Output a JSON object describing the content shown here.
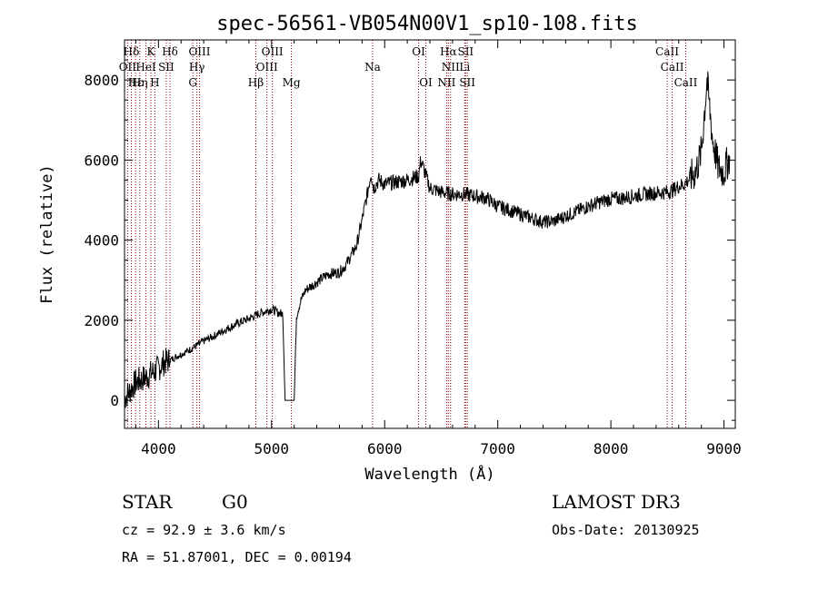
{
  "chart_data": {
    "type": "line",
    "title": "spec-56561-VB054N00V1_sp10-108.fits",
    "xlabel": "Wavelength (Å)",
    "ylabel": "Flux (relative)",
    "xlim": [
      3700,
      9100
    ],
    "ylim": [
      -700,
      9000
    ],
    "x_ticks": [
      4000,
      5000,
      6000,
      7000,
      8000,
      9000
    ],
    "y_ticks": [
      0,
      2000,
      4000,
      6000,
      8000
    ],
    "x_tick_labels": [
      "4000",
      "5000",
      "6000",
      "7000",
      "8000",
      "9000"
    ],
    "y_tick_labels": [
      "0",
      "2000",
      "4000",
      "6000",
      "8000"
    ],
    "series": [
      {
        "name": "flux",
        "x": [
          3700,
          3750,
          3800,
          3850,
          3900,
          3950,
          4000,
          4050,
          4100,
          4150,
          4200,
          4300,
          4400,
          4500,
          4600,
          4700,
          4800,
          4900,
          5000,
          5050,
          5100,
          5110,
          5120,
          5140,
          5160,
          5180,
          5200,
          5220,
          5240,
          5260,
          5300,
          5400,
          5500,
          5600,
          5650,
          5700,
          5750,
          5800,
          5850,
          5880,
          5900,
          5950,
          6000,
          6100,
          6200,
          6300,
          6320,
          6400,
          6500,
          6600,
          6700,
          6800,
          6900,
          7000,
          7100,
          7200,
          7300,
          7400,
          7500,
          7600,
          7700,
          7800,
          7900,
          8000,
          8100,
          8200,
          8300,
          8400,
          8500,
          8550,
          8600,
          8650,
          8700,
          8750,
          8800,
          8850,
          8900,
          8950,
          9000,
          9050
        ],
        "y": [
          50,
          250,
          450,
          520,
          600,
          700,
          800,
          950,
          1000,
          1080,
          1150,
          1300,
          1480,
          1620,
          1780,
          1920,
          2040,
          2180,
          2280,
          2200,
          2150,
          1000,
          0,
          0,
          0,
          0,
          0,
          2100,
          2300,
          2500,
          2750,
          2950,
          3150,
          3200,
          3350,
          3600,
          3850,
          4500,
          5200,
          5700,
          5300,
          5500,
          5400,
          5450,
          5500,
          5600,
          6000,
          5300,
          5200,
          5150,
          5150,
          5100,
          5050,
          4850,
          4750,
          4650,
          4550,
          4450,
          4480,
          4600,
          4720,
          4850,
          4950,
          5030,
          5050,
          5100,
          5150,
          5180,
          5200,
          5250,
          5350,
          5400,
          5550,
          5700,
          6200,
          8000,
          6500,
          5800,
          5700,
          6100
        ]
      }
    ],
    "line_markers": [
      {
        "label": "Hδ",
        "x": 3760,
        "row": 0
      },
      {
        "label": "K",
        "x": 3933,
        "row": 0
      },
      {
        "label": "Hδ",
        "x": 4102,
        "row": 0
      },
      {
        "label": "OIII",
        "x": 4363,
        "row": 0
      },
      {
        "label": "OIII",
        "x": 5007,
        "row": 0
      },
      {
        "label": "OI",
        "x": 6300,
        "row": 0
      },
      {
        "label": "Hα",
        "x": 6563,
        "row": 0
      },
      {
        "label": "SII",
        "x": 6716,
        "row": 0
      },
      {
        "label": "CaII",
        "x": 8498,
        "row": 0
      },
      {
        "label": "OII",
        "x": 3727,
        "row": 1
      },
      {
        "label": "HeI",
        "x": 3889,
        "row": 1
      },
      {
        "label": "SII",
        "x": 4069,
        "row": 1
      },
      {
        "label": "Hγ",
        "x": 4340,
        "row": 1
      },
      {
        "label": "OIII",
        "x": 4959,
        "row": 1
      },
      {
        "label": "Na",
        "x": 5893,
        "row": 1
      },
      {
        "label": "NII",
        "x": 6583,
        "row": 1
      },
      {
        "label": "Li",
        "x": 6708,
        "row": 1
      },
      {
        "label": "CaII",
        "x": 8542,
        "row": 1
      },
      {
        "label": "Hε",
        "x": 3797,
        "row": 2
      },
      {
        "label": "Hη",
        "x": 3835,
        "row": 2
      },
      {
        "label": "H",
        "x": 3968,
        "row": 2
      },
      {
        "label": "G",
        "x": 4304,
        "row": 2
      },
      {
        "label": "Hβ",
        "x": 4861,
        "row": 2
      },
      {
        "label": "Mg",
        "x": 5175,
        "row": 2
      },
      {
        "label": "OI",
        "x": 6364,
        "row": 2
      },
      {
        "label": "NII",
        "x": 6548,
        "row": 2
      },
      {
        "label": "SII",
        "x": 6731,
        "row": 2
      },
      {
        "label": "CaII",
        "x": 8662,
        "row": 2
      }
    ],
    "marker_color": "#8b0000"
  },
  "info": {
    "class": "STAR",
    "subclass": "G0",
    "cz": "cz = 92.9 ± 3.6 km/s",
    "coords": "RA =  51.87001, DEC =    0.00194",
    "survey": "LAMOST DR3",
    "obs_date": "Obs-Date: 20130925"
  }
}
